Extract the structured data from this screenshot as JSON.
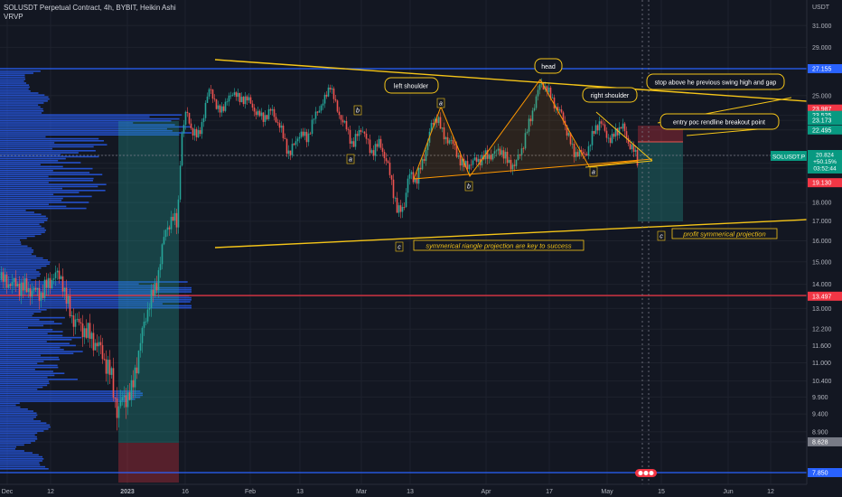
{
  "header": {
    "title": "SOLUSDT Perpetual Contract, 4h, BYBIT, Heikin Ashi",
    "indicator": "VRVP"
  },
  "colors": {
    "background": "#131722",
    "up": "#26a69a",
    "down": "#ef5350",
    "pattern": "#f5c518",
    "blue_line": "#2962ff",
    "red_line": "#f23645",
    "profile": "#2962ff"
  },
  "chart_data": {
    "type": "candlestick",
    "title": "SOLUSDT Perpetual Contract, 4h, BYBIT, Heikin Ashi",
    "price_axis_title": "USDT",
    "y_ticks": [
      "31.000",
      "29.000",
      "25.000",
      "23.525",
      "23.173",
      "22.495",
      "20.824",
      "20.310",
      "20.000",
      "19.130",
      "18.000",
      "17.000",
      "16.000",
      "15.000",
      "14.000",
      "13.497",
      "13.000",
      "12.200",
      "11.600",
      "11.000",
      "10.400",
      "9.900",
      "9.400",
      "8.900",
      "8.628",
      "7.850"
    ],
    "x_ticks": [
      "Dec",
      "12",
      "2023",
      "16",
      "Feb",
      "13",
      "Mar",
      "13",
      "Apr",
      "17",
      "May",
      "15",
      "Jun",
      "12"
    ],
    "price_labels": [
      {
        "value": "27.155",
        "color": "#2962ff"
      },
      {
        "value": "23.987",
        "color": "#f23645"
      },
      {
        "value": "23.525",
        "color": "#089981"
      },
      {
        "value": "23.173",
        "color": "#089981"
      },
      {
        "value": "22.495",
        "color": "#089981"
      },
      {
        "value": "20.824",
        "color": "#f23645"
      },
      {
        "value": "20.310",
        "color": "#089981"
      },
      {
        "value": "20.000",
        "color": "#089981"
      },
      {
        "value": "19.130",
        "color": "#f23645"
      },
      {
        "value": "13.497",
        "color": "#f23645"
      },
      {
        "value": "8.628",
        "color": "#787b86"
      },
      {
        "value": "7.850",
        "color": "#2962ff"
      }
    ],
    "symbol_tag": {
      "name": "SOLUSDT.P",
      "price": "20.824",
      "change": "+50.15%",
      "countdown": "03:52:44"
    },
    "horizontal_levels": [
      27.155,
      13.497,
      7.85
    ],
    "annotations": [
      "left shoulder",
      "head",
      "right shoulder",
      "stop above he previous swing high and gap",
      "entry poc rendline breakout point",
      "symmerical riangle projection are key to success",
      "profit symmerical projection"
    ],
    "wave_labels": [
      "b",
      "a",
      "c",
      "b",
      "a",
      "c"
    ],
    "price_points": [
      [
        0,
        14.2
      ],
      [
        15,
        14.0
      ],
      [
        30,
        13.8
      ],
      [
        45,
        13.6
      ],
      [
        60,
        14.4
      ],
      [
        68,
        14.3
      ],
      [
        72,
        13.4
      ],
      [
        80,
        12.6
      ],
      [
        95,
        12.1
      ],
      [
        110,
        11.5
      ],
      [
        122,
        10.6
      ],
      [
        130,
        9.4
      ],
      [
        136,
        9.9
      ],
      [
        145,
        10.0
      ],
      [
        152,
        11.2
      ],
      [
        158,
        12.2
      ],
      [
        165,
        13.3
      ],
      [
        172,
        13.8
      ],
      [
        178,
        15.4
      ],
      [
        183,
        16.5
      ],
      [
        190,
        17.2
      ],
      [
        196,
        16.8
      ],
      [
        200,
        21.8
      ],
      [
        206,
        23.9
      ],
      [
        212,
        22.4
      ],
      [
        218,
        22.0
      ],
      [
        224,
        23.2
      ],
      [
        232,
        25.8
      ],
      [
        240,
        23.8
      ],
      [
        250,
        24.4
      ],
      [
        258,
        25.4
      ],
      [
        265,
        24.6
      ],
      [
        272,
        24.9
      ],
      [
        280,
        24.0
      ],
      [
        290,
        23.3
      ],
      [
        300,
        23.9
      ],
      [
        310,
        22.6
      ],
      [
        320,
        20.8
      ],
      [
        330,
        22.2
      ],
      [
        340,
        22.0
      ],
      [
        350,
        23.8
      ],
      [
        358,
        24.5
      ],
      [
        365,
        25.9
      ],
      [
        372,
        24.0
      ],
      [
        380,
        23.0
      ],
      [
        390,
        21.5
      ],
      [
        400,
        22.7
      ],
      [
        410,
        21.0
      ],
      [
        420,
        21.6
      ],
      [
        428,
        20.3
      ],
      [
        434,
        18.9
      ],
      [
        440,
        17.4
      ],
      [
        446,
        17.7
      ],
      [
        452,
        19.6
      ],
      [
        460,
        19.3
      ],
      [
        468,
        20.4
      ],
      [
        476,
        22.6
      ],
      [
        484,
        23.5
      ],
      [
        490,
        22.0
      ],
      [
        498,
        21.8
      ],
      [
        505,
        21.0
      ],
      [
        512,
        20.1
      ],
      [
        520,
        20.3
      ],
      [
        528,
        20.5
      ],
      [
        536,
        20.7
      ],
      [
        546,
        20.9
      ],
      [
        554,
        21.2
      ],
      [
        562,
        20.3
      ],
      [
        570,
        20.2
      ],
      [
        578,
        21.4
      ],
      [
        586,
        23.1
      ],
      [
        592,
        24.6
      ],
      [
        598,
        26.0
      ],
      [
        604,
        25.6
      ],
      [
        610,
        24.8
      ],
      [
        616,
        24.0
      ],
      [
        622,
        23.5
      ],
      [
        628,
        22.2
      ],
      [
        634,
        21.0
      ],
      [
        640,
        21.0
      ],
      [
        646,
        20.8
      ],
      [
        652,
        21.4
      ],
      [
        658,
        22.6
      ],
      [
        664,
        23.1
      ],
      [
        670,
        22.2
      ],
      [
        676,
        21.8
      ],
      [
        682,
        22.4
      ],
      [
        688,
        22.9
      ],
      [
        694,
        21.7
      ],
      [
        700,
        21.3
      ],
      [
        706,
        20.2
      ]
    ]
  }
}
